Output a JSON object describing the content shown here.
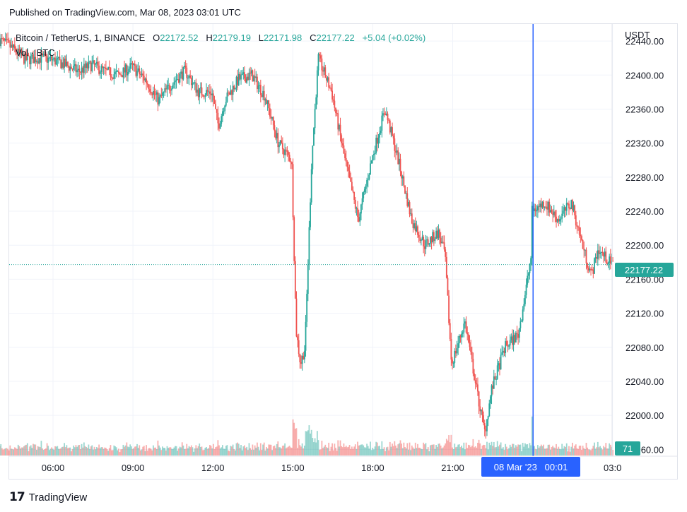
{
  "header": {
    "published": "Published on TradingView.com, Mar 08, 2023 03:01 UTC"
  },
  "legend": {
    "symbol": "Bitcoin / TetherUS, 1, BINANCE",
    "open_label": "O",
    "open": "22172.52",
    "high_label": "H",
    "high": "22179.19",
    "low_label": "L",
    "low": "22171.98",
    "close_label": "C",
    "close": "22177.22",
    "change": "+5.04 (+0.02%)",
    "volume": "Vol · BTC"
  },
  "footer": {
    "brand": "TradingView"
  },
  "colors": {
    "up": "#26a69a",
    "down": "#ef5350",
    "crosshair": "#2962ff",
    "grid": "#f0f3fa"
  },
  "chart_data": {
    "type": "candlestick",
    "title": "Bitcoin / TetherUS, 1, BINANCE",
    "interval": "1 minute",
    "y_axis_unit": "USDT",
    "y_ticks": [
      "22440.00",
      "22400.00",
      "22360.00",
      "22320.00",
      "22280.00",
      "22240.00",
      "22200.00",
      "22160.00",
      "22120.00",
      "22080.00",
      "22040.00",
      "22000.00",
      "21960.00"
    ],
    "ylim": [
      21952,
      22460
    ],
    "x_ticks": [
      "06:00",
      "09:00",
      "12:00",
      "15:00",
      "18:00",
      "21:00",
      "03:0"
    ],
    "last_price": "22177.22",
    "last_volume": "71",
    "crosshair_label": "08 Mar '23   00:01",
    "price_path": [
      [
        "04:00",
        22442
      ],
      [
        "04:30",
        22432
      ],
      [
        "05:00",
        22418
      ],
      [
        "05:30",
        22420
      ],
      [
        "06:00",
        22418
      ],
      [
        "06:30",
        22412
      ],
      [
        "07:00",
        22404
      ],
      [
        "07:30",
        22412
      ],
      [
        "08:00",
        22404
      ],
      [
        "08:30",
        22400
      ],
      [
        "09:00",
        22410
      ],
      [
        "09:30",
        22395
      ],
      [
        "10:00",
        22370
      ],
      [
        "10:30",
        22390
      ],
      [
        "11:00",
        22405
      ],
      [
        "11:30",
        22380
      ],
      [
        "12:00",
        22380
      ],
      [
        "12:15",
        22340
      ],
      [
        "12:30",
        22370
      ],
      [
        "13:00",
        22395
      ],
      [
        "13:30",
        22400
      ],
      [
        "14:00",
        22375
      ],
      [
        "14:30",
        22320
      ],
      [
        "15:00",
        22300
      ],
      [
        "15:10",
        22100
      ],
      [
        "15:20",
        22060
      ],
      [
        "15:30",
        22080
      ],
      [
        "15:45",
        22300
      ],
      [
        "16:00",
        22420
      ],
      [
        "16:30",
        22380
      ],
      [
        "17:00",
        22300
      ],
      [
        "17:30",
        22230
      ],
      [
        "18:00",
        22300
      ],
      [
        "18:30",
        22360
      ],
      [
        "19:00",
        22300
      ],
      [
        "19:30",
        22230
      ],
      [
        "20:00",
        22200
      ],
      [
        "20:30",
        22215
      ],
      [
        "20:45",
        22190
      ],
      [
        "21:00",
        22060
      ],
      [
        "21:30",
        22110
      ],
      [
        "22:00",
        22020
      ],
      [
        "22:15",
        21980
      ],
      [
        "22:30",
        22030
      ],
      [
        "23:00",
        22080
      ],
      [
        "23:30",
        22095
      ],
      [
        "23:45",
        22140
      ],
      [
        "00:00",
        22190
      ],
      [
        "00:01",
        22240
      ],
      [
        "00:30",
        22250
      ],
      [
        "01:00",
        22230
      ],
      [
        "01:30",
        22250
      ],
      [
        "02:00",
        22190
      ],
      [
        "02:15",
        22165
      ],
      [
        "02:30",
        22195
      ],
      [
        "03:01",
        22177
      ]
    ]
  }
}
